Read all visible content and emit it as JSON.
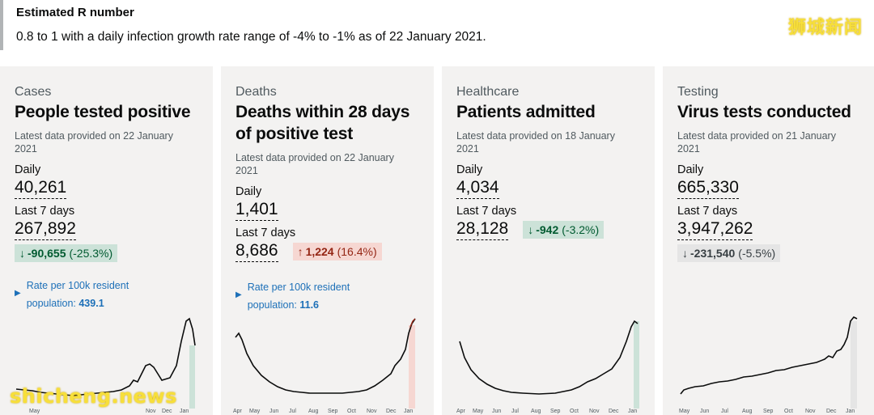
{
  "r_number": {
    "title": "Estimated R number",
    "text": "0.8 to 1 with a daily infection growth rate range of -4% to -1% as of 22 January 2021."
  },
  "watermarks": {
    "top": "狮城新闻",
    "bottom": "shicheng.news"
  },
  "cards": [
    {
      "category": "Cases",
      "title": "People tested positive",
      "updated": "Latest data provided on 22 January 2021",
      "daily_label": "Daily",
      "daily_value": "40,261",
      "week_label": "Last 7 days",
      "week_value": "267,892",
      "change_arrow": "↓",
      "change_value": "-90,655",
      "change_pct": "(-25.3%)",
      "change_tone": "good",
      "rate_label_1": "Rate per 100k resident",
      "rate_label_2": "population:",
      "rate_value": "439.1",
      "months": [
        "Apr",
        "May",
        "Jun",
        "Jul",
        "Aug",
        "Sep",
        "Oct",
        "Nov",
        "Dec",
        "Jan"
      ]
    },
    {
      "category": "Deaths",
      "title": "Deaths within 28 days of positive test",
      "updated": "Latest data provided on 22 January 2021",
      "daily_label": "Daily",
      "daily_value": "1,401",
      "week_label": "Last 7 days",
      "week_value": "8,686",
      "change_arrow": "↑",
      "change_value": "1,224",
      "change_pct": "(16.4%)",
      "change_tone": "bad",
      "rate_label_1": "Rate per 100k resident",
      "rate_label_2": "population:",
      "rate_value": "11.6",
      "months": [
        "Apr",
        "May",
        "Jun",
        "Jul",
        "Aug",
        "Sep",
        "Oct",
        "Nov",
        "Dec",
        "Jan"
      ]
    },
    {
      "category": "Healthcare",
      "title": "Patients admitted",
      "updated": "Latest data provided on 18 January 2021",
      "daily_label": "Daily",
      "daily_value": "4,034",
      "week_label": "Last 7 days",
      "week_value": "28,128",
      "change_arrow": "↓",
      "change_value": "-942",
      "change_pct": "(-3.2%)",
      "change_tone": "good",
      "months": [
        "Apr",
        "May",
        "Jun",
        "Jul",
        "Aug",
        "Sep",
        "Oct",
        "Nov",
        "Dec",
        "Jan"
      ]
    },
    {
      "category": "Testing",
      "title": "Virus tests conducted",
      "updated": "Latest data provided on 21 January 2021",
      "daily_label": "Daily",
      "daily_value": "665,330",
      "week_label": "Last 7 days",
      "week_value": "3,947,262",
      "change_arrow": "↓",
      "change_value": "-231,540",
      "change_pct": "(-5.5%)",
      "change_tone": "neutral",
      "months": [
        "May",
        "Jun",
        "Jul",
        "Aug",
        "Sep",
        "Oct",
        "Nov",
        "Dec",
        "Jan"
      ]
    }
  ]
}
